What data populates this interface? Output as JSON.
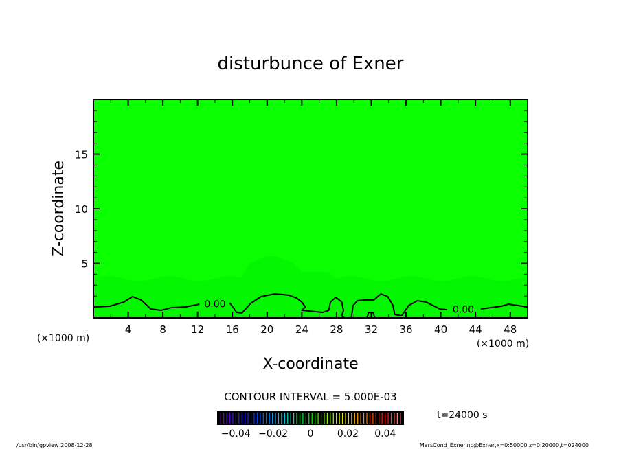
{
  "chart_data": {
    "type": "heatmap",
    "title": "disturbunce of Exner",
    "xlabel": "X-coordinate",
    "ylabel": "Z-coordinate",
    "x_unit": "(×1000 m)",
    "xlim": [
      0,
      50
    ],
    "ylim": [
      0,
      20
    ],
    "x_ticks": [
      4,
      8,
      12,
      16,
      20,
      24,
      28,
      32,
      36,
      40,
      44,
      48
    ],
    "y_ticks": [
      5,
      10,
      15
    ],
    "contour_interval_label": "CONTOUR INTERVAL = 5.000E-03",
    "contour_labels": [
      "0.00",
      "0.00"
    ],
    "contour_zero_segments": [
      [
        [
          0,
          1.0
        ],
        [
          1.9,
          1.07
        ],
        [
          3.5,
          1.45
        ],
        [
          4.5,
          1.95
        ],
        [
          5.5,
          1.64
        ],
        [
          6.6,
          0.82
        ],
        [
          7.8,
          0.69
        ],
        [
          9.0,
          0.94
        ],
        [
          10.6,
          1.0
        ],
        [
          12.2,
          1.26
        ]
      ],
      [
        [
          15.7,
          1.38
        ],
        [
          16.5,
          0.5
        ],
        [
          17.1,
          0.44
        ],
        [
          18.1,
          1.32
        ],
        [
          19.3,
          1.95
        ],
        [
          20.9,
          2.2
        ],
        [
          22.5,
          2.08
        ],
        [
          23.4,
          1.82
        ],
        [
          24.0,
          1.45
        ],
        [
          24.4,
          1.0
        ],
        [
          24.0,
          0.69
        ],
        [
          26.4,
          0.5
        ],
        [
          27.1,
          0.69
        ],
        [
          27.3,
          1.45
        ],
        [
          27.9,
          1.89
        ],
        [
          28.6,
          1.45
        ],
        [
          28.8,
          0.69
        ],
        [
          28.6,
          0.19
        ],
        [
          28.9,
          0
        ]
      ],
      [
        [
          29.7,
          0
        ],
        [
          29.9,
          1.13
        ],
        [
          30.4,
          1.57
        ],
        [
          31.3,
          1.64
        ],
        [
          32.3,
          1.64
        ],
        [
          33.1,
          2.2
        ],
        [
          33.9,
          1.95
        ],
        [
          34.5,
          1.13
        ],
        [
          34.7,
          0.31
        ],
        [
          35.5,
          0.19
        ],
        [
          36.3,
          1.13
        ],
        [
          37.3,
          1.57
        ],
        [
          38.3,
          1.45
        ],
        [
          39.9,
          0.82
        ],
        [
          40.7,
          0.75
        ]
      ],
      [
        [
          44.6,
          0.82
        ],
        [
          47.0,
          1.07
        ],
        [
          47.8,
          1.26
        ],
        [
          50,
          1.0
        ]
      ],
      [
        [
          31.5,
          0
        ],
        [
          31.7,
          0.5
        ],
        [
          32.2,
          0.5
        ],
        [
          32.4,
          0
        ]
      ]
    ],
    "colorbar": {
      "range": [
        -0.05,
        0.05
      ],
      "tick_labels": [
        "-0.04",
        "-0.02",
        "0",
        "0.02",
        "0.04"
      ],
      "tick_values": [
        -0.04,
        -0.02,
        0,
        0.02,
        0.04
      ]
    },
    "colors": {
      "field_main": "#0aff00",
      "field_low": "#00f000"
    }
  },
  "annotations": {
    "time": "t=24000 s",
    "program": "/usr/bin/gpview   2008-12-28",
    "source": "MarsCond_Exner.nc@Exner,x=0:50000,z=0:20000,t=024000"
  }
}
